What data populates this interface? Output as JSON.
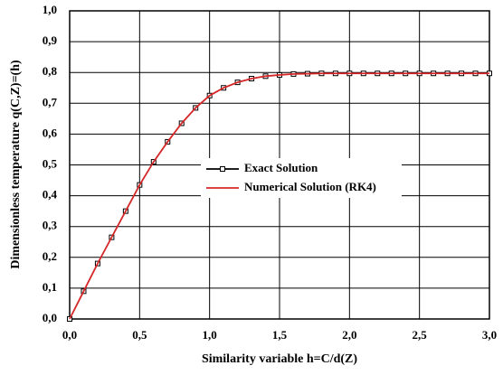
{
  "chart_data": {
    "type": "line",
    "x_label": "Similarity variable h=C/d(Z)",
    "y_label": "Dimensionless temperature q(C,Z)=(h)",
    "x": [
      0.0,
      0.1,
      0.2,
      0.3,
      0.4,
      0.5,
      0.6,
      0.7,
      0.8,
      0.9,
      1.0,
      1.1,
      1.2,
      1.3,
      1.4,
      1.5,
      1.6,
      1.7,
      1.8,
      1.9,
      2.0,
      2.1,
      2.2,
      2.3,
      2.4,
      2.5,
      2.6,
      2.7,
      2.8,
      2.9,
      3.0
    ],
    "series": [
      {
        "name": "Exact Solution",
        "color": "#000000",
        "marker": "square",
        "values": [
          0,
          0.09,
          0.18,
          0.265,
          0.35,
          0.435,
          0.51,
          0.575,
          0.635,
          0.685,
          0.725,
          0.75,
          0.768,
          0.78,
          0.788,
          0.792,
          0.795,
          0.796,
          0.797,
          0.797,
          0.797,
          0.797,
          0.797,
          0.797,
          0.797,
          0.797,
          0.797,
          0.797,
          0.797,
          0.797,
          0.797
        ]
      },
      {
        "name": "Numerical Solution (RK4)",
        "color": "#d62728",
        "values": [
          0,
          0.09,
          0.18,
          0.265,
          0.35,
          0.435,
          0.51,
          0.575,
          0.635,
          0.685,
          0.725,
          0.75,
          0.768,
          0.78,
          0.788,
          0.792,
          0.795,
          0.796,
          0.797,
          0.797,
          0.797,
          0.797,
          0.797,
          0.797,
          0.797,
          0.797,
          0.797,
          0.797,
          0.797,
          0.797,
          0.797
        ]
      }
    ],
    "xlim": [
      0,
      3
    ],
    "xticks": [
      {
        "value": 0,
        "label": "0,0"
      },
      {
        "value": 0.5,
        "label": "0,5"
      },
      {
        "value": 1,
        "label": "1,0"
      },
      {
        "value": 1.5,
        "label": "1,5"
      },
      {
        "value": 2,
        "label": "2,0"
      },
      {
        "value": 2.5,
        "label": "2,5"
      },
      {
        "value": 3,
        "label": "3,0"
      }
    ],
    "ylim": [
      0,
      1
    ],
    "yticks": [
      {
        "value": 0,
        "label": "0,0"
      },
      {
        "value": 0.1,
        "label": "0,1"
      },
      {
        "value": 0.2,
        "label": "0,2"
      },
      {
        "value": 0.3,
        "label": "0,3"
      },
      {
        "value": 0.4,
        "label": "0,4"
      },
      {
        "value": 0.5,
        "label": "0,5"
      },
      {
        "value": 0.6,
        "label": "0,6"
      },
      {
        "value": 0.7,
        "label": "0,7"
      },
      {
        "value": 0.8,
        "label": "0,8"
      },
      {
        "value": 0.9,
        "label": "0,9"
      },
      {
        "value": 1,
        "label": "1,0"
      }
    ],
    "grid": true
  }
}
